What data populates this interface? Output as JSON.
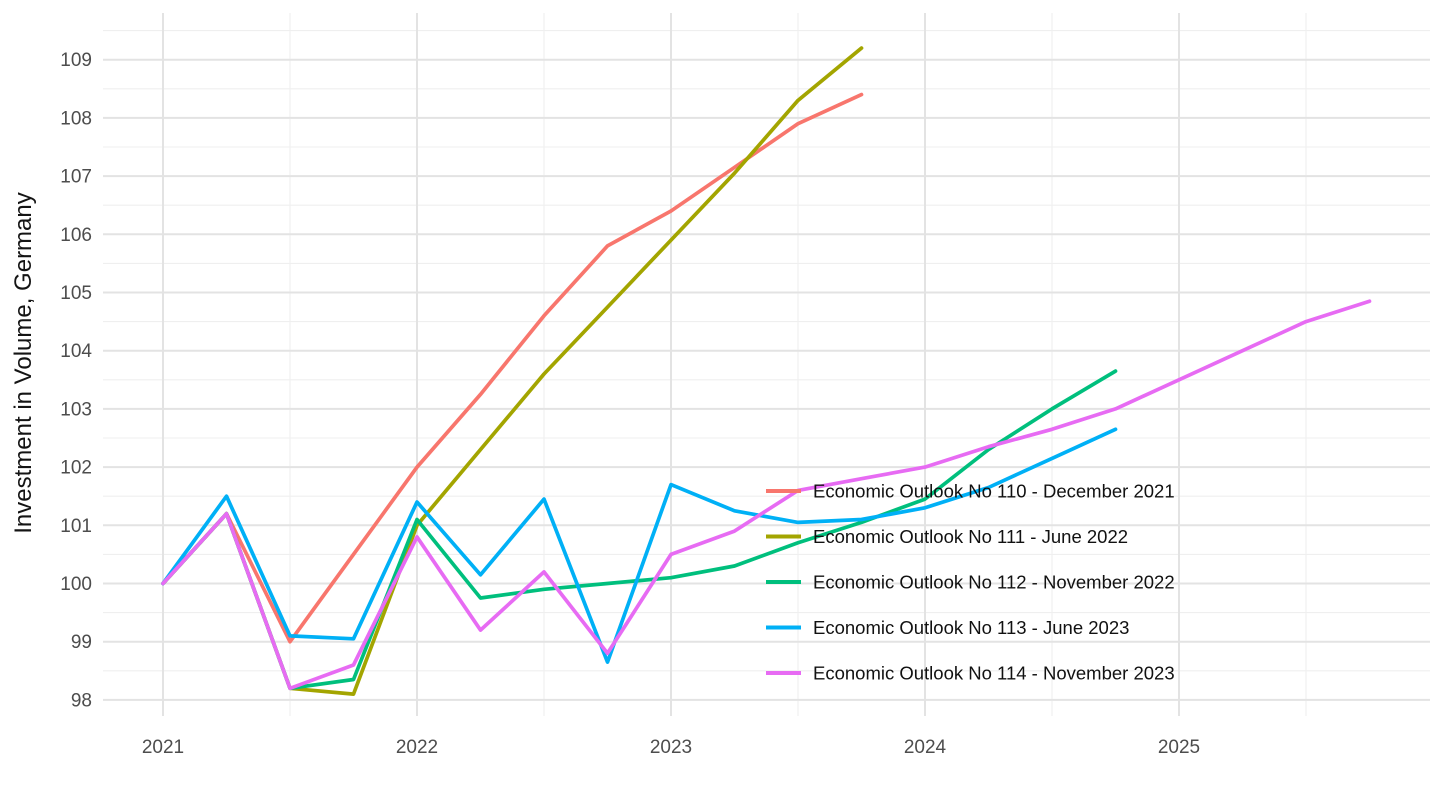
{
  "chart_data": {
    "type": "line",
    "title": "",
    "xlabel": "",
    "ylabel": "Investment in Volume, Germany",
    "grid": "major and minor, light gray on white (ggplot minimal theme)",
    "legend_position": "inside plot, center-right",
    "xlim": [
      2020.76,
      2025.99
    ],
    "ylim": [
      97.7,
      109.8
    ],
    "x_major_ticks": [
      2021,
      2022,
      2023,
      2024,
      2025
    ],
    "y_major_ticks": [
      98,
      99,
      100,
      101,
      102,
      103,
      104,
      105,
      106,
      107,
      108,
      109
    ],
    "x_frequency": "quarterly",
    "series": [
      {
        "name": "Economic Outlook No 110 - December 2021",
        "color": "#F8766D",
        "x": [
          2021.0,
          2021.25,
          2021.5,
          2021.75,
          2022.0,
          2022.25,
          2022.5,
          2022.75,
          2023.0,
          2023.25,
          2023.5,
          2023.75
        ],
        "values": [
          100.0,
          101.2,
          99.0,
          100.5,
          102.0,
          103.25,
          104.6,
          105.8,
          106.4,
          107.15,
          107.9,
          108.4
        ]
      },
      {
        "name": "Economic Outlook No 111 - June 2022",
        "color": "#A3A500",
        "x": [
          2021.0,
          2021.25,
          2021.5,
          2021.75,
          2022.0,
          2022.25,
          2022.5,
          2022.75,
          2023.0,
          2023.25,
          2023.5,
          2023.75
        ],
        "values": [
          100.0,
          101.2,
          98.2,
          98.1,
          101.0,
          102.3,
          103.6,
          104.75,
          105.9,
          107.05,
          108.3,
          109.2
        ]
      },
      {
        "name": "Economic Outlook No 112 - November 2022",
        "color": "#00BF7D",
        "x": [
          2021.0,
          2021.25,
          2021.5,
          2021.75,
          2022.0,
          2022.25,
          2022.5,
          2022.75,
          2023.0,
          2023.25,
          2023.5,
          2023.75,
          2024.0,
          2024.25,
          2024.5,
          2024.75
        ],
        "values": [
          100.0,
          101.2,
          98.2,
          98.35,
          101.1,
          99.75,
          99.9,
          100.0,
          100.1,
          100.3,
          100.7,
          101.05,
          101.45,
          102.3,
          103.0,
          103.65
        ]
      },
      {
        "name": "Economic Outlook No 113 - June 2023",
        "color": "#00B0F6",
        "x": [
          2021.0,
          2021.25,
          2021.5,
          2021.75,
          2022.0,
          2022.25,
          2022.5,
          2022.75,
          2023.0,
          2023.25,
          2023.5,
          2023.75,
          2024.0,
          2024.25,
          2024.5,
          2024.75
        ],
        "values": [
          100.0,
          101.5,
          99.1,
          99.05,
          101.4,
          100.15,
          101.45,
          98.65,
          101.7,
          101.25,
          101.05,
          101.1,
          101.3,
          101.65,
          102.15,
          102.65
        ]
      },
      {
        "name": "Economic Outlook No 114 - November 2023",
        "color": "#E76BF3",
        "x": [
          2021.0,
          2021.25,
          2021.5,
          2021.75,
          2022.0,
          2022.25,
          2022.5,
          2022.75,
          2023.0,
          2023.25,
          2023.5,
          2023.75,
          2024.0,
          2024.25,
          2024.5,
          2024.75,
          2025.0,
          2025.25,
          2025.5,
          2025.75
        ],
        "values": [
          100.0,
          101.2,
          98.2,
          98.6,
          100.8,
          99.2,
          100.2,
          98.8,
          100.5,
          100.9,
          101.6,
          101.8,
          102.0,
          102.35,
          102.65,
          103.0,
          103.5,
          104.0,
          104.5,
          104.85
        ]
      }
    ]
  },
  "x_axis": {
    "tick_labels": [
      "2021",
      "2022",
      "2023",
      "2024",
      "2025"
    ]
  },
  "y_axis": {
    "title": "Investment in Volume, Germany",
    "tick_labels": [
      "98",
      "99",
      "100",
      "101",
      "102",
      "103",
      "104",
      "105",
      "106",
      "107",
      "108",
      "109"
    ]
  },
  "legend": {
    "items": [
      {
        "label": "Economic Outlook No 110 - December 2021",
        "color": "#F8766D"
      },
      {
        "label": "Economic Outlook No 111 - June 2022",
        "color": "#A3A500"
      },
      {
        "label": "Economic Outlook No 112 - November 2022",
        "color": "#00BF7D"
      },
      {
        "label": "Economic Outlook No 113 - June 2023",
        "color": "#00B0F6"
      },
      {
        "label": "Economic Outlook No 114 - November 2023",
        "color": "#E76BF3"
      }
    ]
  }
}
